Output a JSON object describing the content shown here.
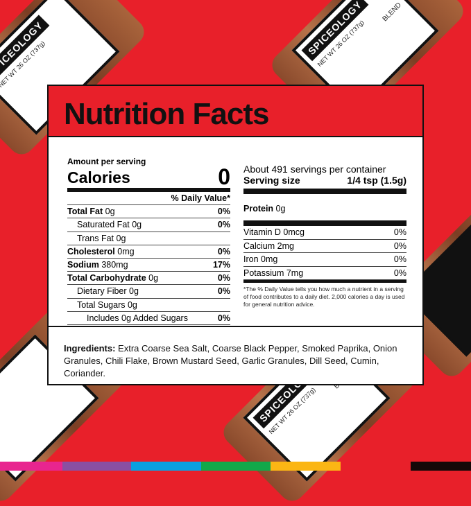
{
  "jar": {
    "brand": "SPICEOLOGY",
    "net_wt": "NET WT 26 OZ (737g)",
    "blend": "BLEND"
  },
  "title": "Nutrition Facts",
  "amount_per_serving": "Amount per serving",
  "calories_label": "Calories",
  "calories_value": "0",
  "dv_header": "% Daily Value*",
  "nutrients": [
    {
      "name": "Total Fat",
      "amt": "0g",
      "dv": "0%",
      "bold": true,
      "indent": 0
    },
    {
      "name": "Saturated Fat",
      "amt": "0g",
      "dv": "0%",
      "bold": false,
      "indent": 1
    },
    {
      "name": "Trans Fat",
      "amt": "0g",
      "dv": "",
      "bold": false,
      "indent": 1
    },
    {
      "name": "Cholesterol",
      "amt": "0mg",
      "dv": "0%",
      "bold": true,
      "indent": 0
    },
    {
      "name": "Sodium",
      "amt": "380mg",
      "dv": "17%",
      "bold": true,
      "indent": 0
    },
    {
      "name": "Total Carbohydrate",
      "amt": "0g",
      "dv": "0%",
      "bold": true,
      "indent": 0
    },
    {
      "name": "Dietary Fiber",
      "amt": "0g",
      "dv": "0%",
      "bold": false,
      "indent": 1
    },
    {
      "name": "Total Sugars",
      "amt": "0g",
      "dv": "",
      "bold": false,
      "indent": 1
    },
    {
      "name": "Includes 0g Added Sugars",
      "amt": "",
      "dv": "0%",
      "bold": false,
      "indent": 2
    }
  ],
  "servings": "About 491 servings per container",
  "serving_size_label": "Serving size",
  "serving_size_value": "1/4 tsp (1.5g)",
  "protein_label": "Protein",
  "protein_value": "0g",
  "vitamins": [
    {
      "name": "Vitamin D 0mcg",
      "dv": "0%"
    },
    {
      "name": "Calcium 2mg",
      "dv": "0%"
    },
    {
      "name": "Iron 0mg",
      "dv": "0%"
    },
    {
      "name": "Potassium 7mg",
      "dv": "0%"
    }
  ],
  "footnote": "*The % Daily Value tells you how much a nutrient in a serving of food contributes to a daily diet. 2,000 calories a day is used for general nutrition advice.",
  "ingredients_label": "Ingredients:",
  "ingredients": "Extra Coarse Sea Salt, Coarse Black Pepper, Smoked Paprika, Onion Granules, Chili Flake, Brown Mustard Seed, Garlic Granules, Dill Seed, Cumin, Coriander.",
  "color_bar": [
    "#e8258f",
    "#8a4fa2",
    "#0aa0e0",
    "#12a84a",
    "#fbb614",
    "#e8202a",
    "#140808"
  ]
}
